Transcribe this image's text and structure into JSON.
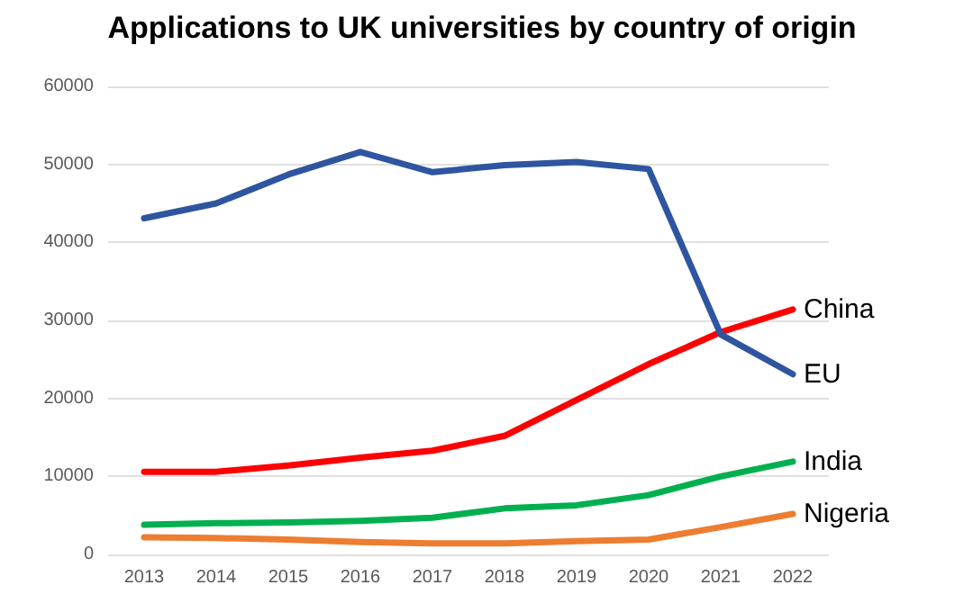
{
  "chart_data": {
    "type": "line",
    "title": "Applications to UK universities by country of origin",
    "categories": [
      "2013",
      "2014",
      "2015",
      "2016",
      "2017",
      "2018",
      "2019",
      "2020",
      "2021",
      "2022"
    ],
    "series": [
      {
        "name": "China",
        "color": "#ff0000",
        "values": [
          10600,
          10600,
          11400,
          12400,
          13300,
          15200,
          19800,
          24400,
          28500,
          31400
        ]
      },
      {
        "name": "EU",
        "color": "#2f55a0",
        "values": [
          43100,
          45000,
          48700,
          51600,
          49000,
          49900,
          50300,
          49400,
          28200,
          23100
        ]
      },
      {
        "name": "India",
        "color": "#00b050",
        "values": [
          3800,
          4000,
          4100,
          4300,
          4700,
          5900,
          6300,
          7600,
          10000,
          11900
        ]
      },
      {
        "name": "Nigeria",
        "color": "#ed7d31",
        "values": [
          2200,
          2100,
          1900,
          1600,
          1400,
          1400,
          1700,
          1900,
          3500,
          5200
        ]
      }
    ],
    "ylim": [
      0,
      60000
    ],
    "yticks": [
      0,
      10000,
      20000,
      30000,
      40000,
      50000,
      60000
    ],
    "grid": "y",
    "legend": false,
    "marker": "none",
    "line_style": "solid"
  }
}
